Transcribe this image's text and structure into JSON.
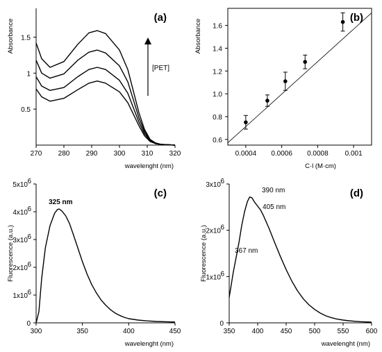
{
  "chart_data": [
    {
      "panel": "(a)",
      "type": "line",
      "xlabel": "wavelenght (nm)",
      "ylabel": "Absorbance",
      "xlim": [
        270,
        320
      ],
      "ylim": [
        0,
        1.9
      ],
      "xticks": [
        270,
        280,
        290,
        300,
        310,
        320
      ],
      "yticks": [
        0.5,
        1,
        1.5
      ],
      "annotation": "[PET]",
      "series": [
        {
          "x": [
            270,
            272,
            275,
            280,
            285,
            289,
            292,
            295,
            300,
            303,
            305,
            307,
            309,
            311,
            313,
            315,
            320
          ],
          "values": [
            1.42,
            1.2,
            1.08,
            1.16,
            1.4,
            1.56,
            1.59,
            1.55,
            1.32,
            1.05,
            0.75,
            0.45,
            0.22,
            0.08,
            0.03,
            0.01,
            0.0
          ]
        },
        {
          "x": [
            270,
            272,
            275,
            280,
            285,
            289,
            292,
            295,
            300,
            303,
            305,
            307,
            309,
            311,
            313,
            315,
            320
          ],
          "values": [
            1.18,
            1.0,
            0.93,
            0.99,
            1.18,
            1.29,
            1.32,
            1.28,
            1.1,
            0.88,
            0.63,
            0.38,
            0.19,
            0.07,
            0.03,
            0.01,
            0.0
          ]
        },
        {
          "x": [
            270,
            272,
            275,
            280,
            285,
            289,
            292,
            295,
            300,
            303,
            305,
            307,
            309,
            311,
            313,
            315,
            320
          ],
          "values": [
            0.95,
            0.82,
            0.76,
            0.8,
            0.95,
            1.05,
            1.08,
            1.05,
            0.9,
            0.72,
            0.52,
            0.32,
            0.16,
            0.06,
            0.02,
            0.01,
            0.0
          ]
        },
        {
          "x": [
            270,
            272,
            275,
            280,
            285,
            289,
            292,
            295,
            300,
            303,
            305,
            307,
            309,
            311,
            313,
            315,
            320
          ],
          "values": [
            0.78,
            0.67,
            0.61,
            0.65,
            0.77,
            0.86,
            0.89,
            0.86,
            0.74,
            0.59,
            0.43,
            0.27,
            0.13,
            0.05,
            0.02,
            0.01,
            0.0
          ]
        }
      ]
    },
    {
      "panel": "(b)",
      "type": "scatter",
      "xlabel": "C·l (M·cm)",
      "ylabel": "Absorbance",
      "xlim": [
        0.0003,
        0.0011
      ],
      "ylim": [
        0.55,
        1.75
      ],
      "xticks": [
        0.0004,
        0.0006,
        0.0008,
        0.001
      ],
      "xticklabels": [
        "0.0004",
        "0.0006",
        "0.0008",
        "0.001"
      ],
      "yticks": [
        0.6,
        0.8,
        1.0,
        1.2,
        1.4,
        1.6
      ],
      "yticklabels": [
        "0.6",
        "0.8",
        "1.0",
        "1.2",
        "1.4",
        "1.6"
      ],
      "points": {
        "x": [
          0.0004,
          0.00052,
          0.00062,
          0.00073,
          0.00094
        ],
        "y": [
          0.75,
          0.94,
          1.11,
          1.28,
          1.63
        ],
        "err": [
          0.06,
          0.05,
          0.08,
          0.06,
          0.08
        ]
      },
      "fit_line": {
        "x": [
          0.0003,
          0.0011
        ],
        "y": [
          0.57,
          1.71
        ]
      }
    },
    {
      "panel": "(c)",
      "type": "line",
      "xlabel": "wavelenght (nm)",
      "ylabel": "Fluorescence (a.u.)",
      "xlim": [
        300,
        450
      ],
      "ylim": [
        0,
        5000000
      ],
      "xticks": [
        300,
        350,
        400,
        450
      ],
      "yticks": [
        0,
        1000000,
        2000000,
        3000000,
        4000000,
        5000000
      ],
      "yticklabels": [
        "0",
        "1x10",
        "2x10",
        "3x10",
        "4x10",
        "5x10"
      ],
      "ytickexp": [
        "",
        "6",
        "6",
        "6",
        "6",
        "6"
      ],
      "annotation": "325 nm",
      "annotation_x": 325,
      "series": [
        {
          "x": [
            300,
            303,
            306,
            310,
            315,
            320,
            323,
            325,
            328,
            332,
            336,
            340,
            345,
            350,
            355,
            360,
            365,
            370,
            375,
            380,
            385,
            390,
            395,
            400,
            410,
            420,
            430,
            440,
            450
          ],
          "values": [
            0,
            400000,
            1600000,
            2700000,
            3500000,
            3950000,
            4080000,
            4100000,
            4020000,
            3850000,
            3580000,
            3200000,
            2700000,
            2200000,
            1760000,
            1380000,
            1080000,
            830000,
            640000,
            480000,
            360000,
            270000,
            200000,
            150000,
            100000,
            70000,
            50000,
            40000,
            30000
          ]
        }
      ]
    },
    {
      "panel": "(d)",
      "type": "line",
      "xlabel": "wavelenght (nm)",
      "ylabel": "Fluorescence (a.u.)",
      "xlim": [
        350,
        600
      ],
      "ylim": [
        0,
        3000000
      ],
      "xticks": [
        350,
        400,
        450,
        500,
        550,
        600
      ],
      "yticks": [
        0,
        1000000,
        2000000,
        3000000
      ],
      "yticklabels": [
        "0",
        "1x10",
        "2x10",
        "3x10"
      ],
      "ytickexp": [
        "",
        "6",
        "6",
        "6"
      ],
      "annotations": [
        {
          "text": "390 nm",
          "x": 390
        },
        {
          "text": "405 nm",
          "x": 405
        },
        {
          "text": "367 nm",
          "x": 367
        }
      ],
      "series": [
        {
          "x": [
            350,
            353,
            357,
            362,
            367,
            372,
            377,
            382,
            386,
            390,
            395,
            400,
            405,
            410,
            420,
            430,
            440,
            450,
            460,
            470,
            480,
            490,
            500,
            510,
            520,
            530,
            540,
            550,
            560,
            570,
            580,
            590,
            600
          ],
          "values": [
            550000,
            780000,
            1080000,
            1400000,
            1720000,
            2100000,
            2400000,
            2620000,
            2720000,
            2700000,
            2600000,
            2520000,
            2440000,
            2320000,
            2040000,
            1730000,
            1430000,
            1150000,
            900000,
            690000,
            520000,
            390000,
            290000,
            210000,
            150000,
            110000,
            80000,
            60000,
            45000,
            35000,
            25000,
            20000,
            15000
          ]
        }
      ]
    }
  ],
  "panel_labels": [
    "(a)",
    "(b)",
    "(c)",
    "(d)"
  ]
}
